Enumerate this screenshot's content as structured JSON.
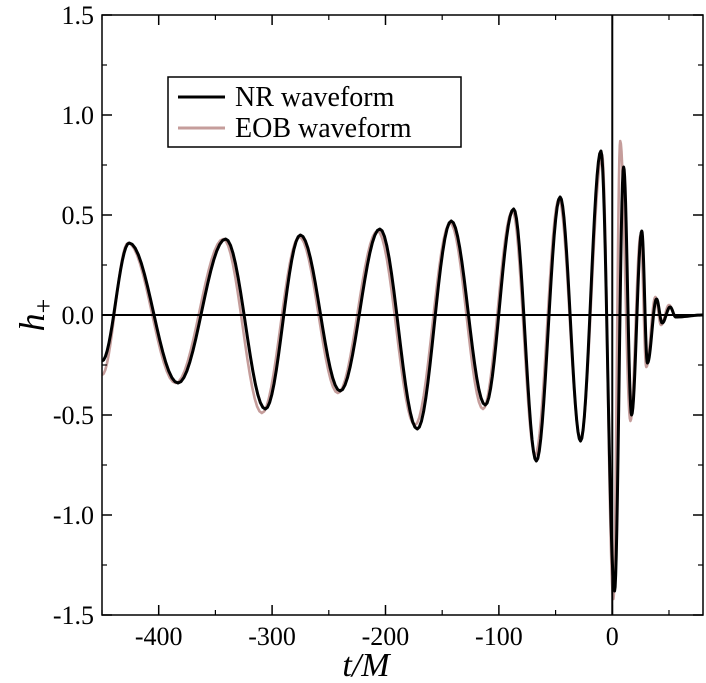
{
  "chart_data": {
    "type": "line",
    "title": "",
    "xlabel": "t/M",
    "ylabel": "h+",
    "xlim": [
      -450,
      80
    ],
    "ylim": [
      -1.5,
      1.5
    ],
    "x_ticks": [
      -400,
      -300,
      -200,
      -100,
      0
    ],
    "x_tick_labels": [
      "-400",
      "-300",
      "-200",
      "-100",
      "0"
    ],
    "y_ticks": [
      -1.5,
      -1.0,
      -0.5,
      0.0,
      0.5,
      1.0,
      1.5
    ],
    "y_tick_labels": [
      "-1.5",
      "-1.0",
      "-0.5",
      "0.0",
      "0.5",
      "1.0",
      "1.5"
    ],
    "reference_lines": {
      "horizontal_y": 0.0,
      "vertical_x": 0
    },
    "legend": {
      "position": "top-left"
    },
    "series": [
      {
        "name": "NR waveform",
        "color": "#000000",
        "extrema": [
          [
            -450,
            -0.23
          ],
          [
            -426,
            0.36
          ],
          [
            -383,
            -0.34
          ],
          [
            -341,
            0.38
          ],
          [
            -306,
            -0.47
          ],
          [
            -275,
            0.4
          ],
          [
            -240,
            -0.38
          ],
          [
            -205,
            0.43
          ],
          [
            -172,
            -0.57
          ],
          [
            -142,
            0.47
          ],
          [
            -112,
            -0.45
          ],
          [
            -87,
            0.53
          ],
          [
            -67,
            -0.73
          ],
          [
            -46,
            0.59
          ],
          [
            -28,
            -0.63
          ],
          [
            -10,
            0.82
          ],
          [
            2,
            -1.38
          ],
          [
            10,
            0.74
          ],
          [
            17,
            -0.5
          ],
          [
            26,
            0.42
          ],
          [
            31,
            -0.24
          ],
          [
            39,
            0.08
          ],
          [
            44,
            -0.04
          ],
          [
            51,
            0.04
          ],
          [
            56,
            -0.01
          ],
          [
            80,
            0.0
          ]
        ]
      },
      {
        "name": "EOB waveform",
        "color": "#c59d9b",
        "extrema": [
          [
            -450,
            -0.3
          ],
          [
            -427,
            0.36
          ],
          [
            -385,
            -0.34
          ],
          [
            -343,
            0.38
          ],
          [
            -309,
            -0.49
          ],
          [
            -276,
            0.39
          ],
          [
            -242,
            -0.39
          ],
          [
            -207,
            0.42
          ],
          [
            -174,
            -0.55
          ],
          [
            -143,
            0.46
          ],
          [
            -114,
            -0.47
          ],
          [
            -88,
            0.52
          ],
          [
            -68,
            -0.7
          ],
          [
            -47,
            0.58
          ],
          [
            -28,
            -0.62
          ],
          [
            -9,
            0.8
          ],
          [
            1,
            -1.42
          ],
          [
            7,
            0.87
          ],
          [
            16,
            -0.53
          ],
          [
            25,
            0.4
          ],
          [
            30,
            -0.26
          ],
          [
            38,
            0.09
          ],
          [
            43,
            -0.05
          ],
          [
            50,
            0.05
          ],
          [
            56,
            -0.01
          ],
          [
            80,
            0.0
          ]
        ]
      }
    ]
  }
}
